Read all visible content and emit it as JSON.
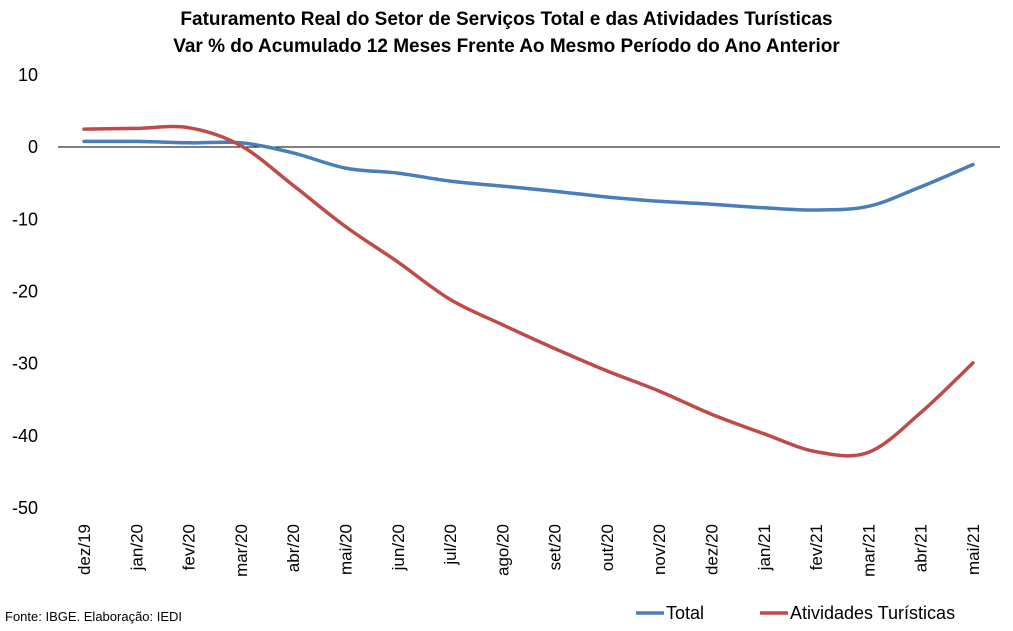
{
  "chart_data": {
    "type": "line",
    "title": "Faturamento Real do Setor de Serviços Total e das Atividades Turísticas",
    "subtitle": "Var % do Acumulado 12 Meses Frente Ao Mesmo Período do Ano Anterior",
    "categories": [
      "dez/19",
      "jan/20",
      "fev/20",
      "mar/20",
      "abr/20",
      "mai/20",
      "jun/20",
      "jul/20",
      "ago/20",
      "set/20",
      "out/20",
      "nov/20",
      "dez/20",
      "jan/21",
      "fev/21",
      "mar/21",
      "abr/21",
      "mai/21"
    ],
    "series": [
      {
        "name": "Total",
        "color": "#4a7ebb",
        "values": [
          0.8,
          0.8,
          0.6,
          0.6,
          -0.8,
          -2.9,
          -3.6,
          -4.7,
          -5.4,
          -6.1,
          -6.9,
          -7.5,
          -7.9,
          -8.4,
          -8.7,
          -8.2,
          -5.5,
          -2.4
        ]
      },
      {
        "name": "Atividades Turísticas",
        "color": "#be4b48",
        "values": [
          2.5,
          2.6,
          2.7,
          0.2,
          -5.3,
          -11.0,
          -15.9,
          -21.1,
          -24.6,
          -27.9,
          -31.0,
          -33.8,
          -37.0,
          -39.7,
          -42.2,
          -42.3,
          -36.8,
          -29.9
        ]
      }
    ],
    "ylim": [
      -50,
      10
    ],
    "yticks": [
      "10",
      "0",
      "-10",
      "-20",
      "-30",
      "-40",
      "-50"
    ],
    "grid": false,
    "legend": "bottom-right"
  },
  "source": "Fonte: IBGE. Elaboração: IEDI"
}
